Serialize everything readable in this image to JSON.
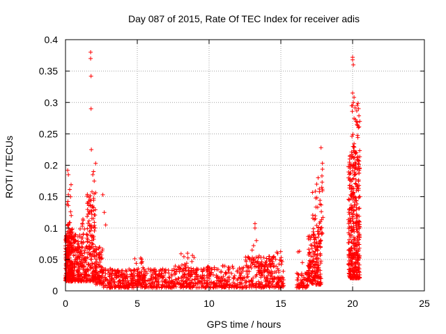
{
  "chart_data": {
    "type": "scatter",
    "title": "Day 087 of 2015, Rate Of TEC Index for receiver adis",
    "xlabel": "GPS time / hours",
    "ylabel": "ROTI / TECUs",
    "xlim": [
      0,
      25
    ],
    "ylim": [
      0,
      0.4
    ],
    "xticks": [
      0,
      5,
      10,
      15,
      20,
      25
    ],
    "xtick_labels": [
      "0",
      "5",
      "10",
      "15",
      "20",
      "25"
    ],
    "yticks": [
      0,
      0.05,
      0.1,
      0.15,
      0.2,
      0.25,
      0.3,
      0.35,
      0.4
    ],
    "ytick_labels": [
      "0",
      "0.05",
      "0.1",
      "0.15",
      "0.2",
      "0.25",
      "0.3",
      "0.35",
      "0.4"
    ],
    "grid": true,
    "marker": "+",
    "color": "#ff0000",
    "series": [
      {
        "name": "ROTI",
        "clusters": [
          {
            "x": [
              0.0,
              0.5
            ],
            "y": [
              0.015,
              0.1
            ],
            "n": 260
          },
          {
            "x": [
              0.1,
              0.4
            ],
            "y": [
              0.1,
              0.195
            ],
            "n": 14
          },
          {
            "x": [
              0.5,
              1.5
            ],
            "y": [
              0.015,
              0.09
            ],
            "n": 200
          },
          {
            "x": [
              0.9,
              1.4
            ],
            "y": [
              0.09,
              0.115
            ],
            "n": 8
          },
          {
            "x": [
              1.5,
              2.1
            ],
            "y": [
              0.015,
              0.16
            ],
            "n": 150
          },
          {
            "x": [
              2.1,
              2.6
            ],
            "y": [
              0.01,
              0.07
            ],
            "n": 80
          },
          {
            "x": [
              2.6,
              4.0
            ],
            "y": [
              0.005,
              0.035
            ],
            "n": 120
          },
          {
            "x": [
              4.0,
              7.5
            ],
            "y": [
              0.005,
              0.035
            ],
            "n": 260
          },
          {
            "x": [
              4.5,
              5.6
            ],
            "y": [
              0.02,
              0.055
            ],
            "n": 30
          },
          {
            "x": [
              7.5,
              12.5
            ],
            "y": [
              0.005,
              0.04
            ],
            "n": 340
          },
          {
            "x": [
              8.0,
              9.0
            ],
            "y": [
              0.03,
              0.06
            ],
            "n": 18
          },
          {
            "x": [
              12.5,
              15.2
            ],
            "y": [
              0.005,
              0.055
            ],
            "n": 240
          },
          {
            "x": [
              13.0,
              15.0
            ],
            "y": [
              0.04,
              0.065
            ],
            "n": 16
          },
          {
            "x": [
              16.1,
              16.9
            ],
            "y": [
              0.005,
              0.03
            ],
            "n": 60
          },
          {
            "x": [
              16.9,
              17.8
            ],
            "y": [
              0.01,
              0.09
            ],
            "n": 180
          },
          {
            "x": [
              17.2,
              17.9
            ],
            "y": [
              0.09,
              0.175
            ],
            "n": 34
          },
          {
            "x": [
              17.8,
              18.0
            ],
            "y": [
              0.1,
              0.205
            ],
            "n": 10
          },
          {
            "x": [
              19.7,
              20.5
            ],
            "y": [
              0.02,
              0.22
            ],
            "n": 380
          },
          {
            "x": [
              19.9,
              20.5
            ],
            "y": [
              0.22,
              0.3
            ],
            "n": 30
          }
        ],
        "points": [
          {
            "x": 1.75,
            "y": 0.38
          },
          {
            "x": 1.75,
            "y": 0.37
          },
          {
            "x": 1.78,
            "y": 0.342
          },
          {
            "x": 1.78,
            "y": 0.29
          },
          {
            "x": 1.8,
            "y": 0.225
          },
          {
            "x": 2.1,
            "y": 0.203
          },
          {
            "x": 1.95,
            "y": 0.19
          },
          {
            "x": 1.9,
            "y": 0.185
          },
          {
            "x": 2.0,
            "y": 0.175
          },
          {
            "x": 2.6,
            "y": 0.153
          },
          {
            "x": 2.7,
            "y": 0.125
          },
          {
            "x": 2.8,
            "y": 0.105
          },
          {
            "x": 0.2,
            "y": 0.153
          },
          {
            "x": 0.15,
            "y": 0.192
          },
          {
            "x": 0.2,
            "y": 0.185
          },
          {
            "x": 13.2,
            "y": 0.107
          },
          {
            "x": 13.2,
            "y": 0.1
          },
          {
            "x": 13.3,
            "y": 0.08
          },
          {
            "x": 13.1,
            "y": 0.072
          },
          {
            "x": 13.0,
            "y": 0.065
          },
          {
            "x": 16.2,
            "y": 0.062
          },
          {
            "x": 16.3,
            "y": 0.063
          },
          {
            "x": 16.5,
            "y": 0.045
          },
          {
            "x": 17.8,
            "y": 0.228
          },
          {
            "x": 17.6,
            "y": 0.18
          },
          {
            "x": 17.5,
            "y": 0.17
          },
          {
            "x": 20.0,
            "y": 0.372
          },
          {
            "x": 20.0,
            "y": 0.368
          },
          {
            "x": 20.05,
            "y": 0.36
          },
          {
            "x": 20.0,
            "y": 0.315
          },
          {
            "x": 20.1,
            "y": 0.308
          },
          {
            "x": 20.05,
            "y": 0.3
          },
          {
            "x": 20.3,
            "y": 0.265
          },
          {
            "x": 20.4,
            "y": 0.26
          },
          {
            "x": 19.8,
            "y": 0.21
          },
          {
            "x": 19.9,
            "y": 0.2
          },
          {
            "x": 20.5,
            "y": 0.27
          }
        ]
      }
    ]
  }
}
